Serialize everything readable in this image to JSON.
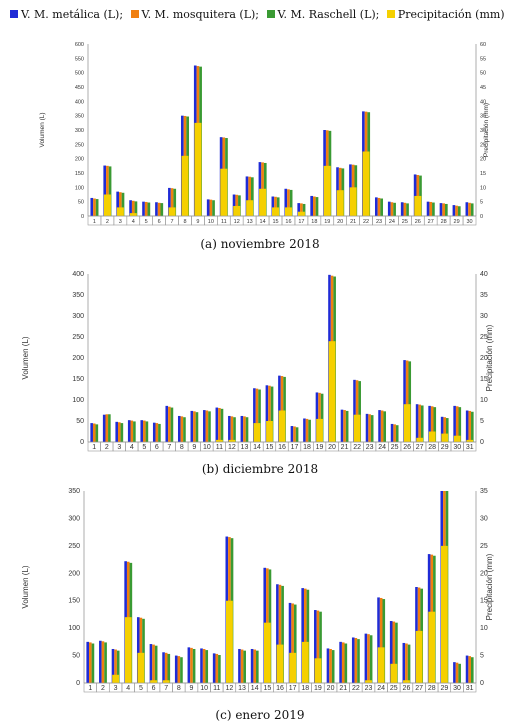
{
  "legend": {
    "items": [
      {
        "label": "V. M. metálica (L);",
        "color": "#1f2bd6"
      },
      {
        "label": "V. M. mosquitera (L);",
        "color": "#f07f10"
      },
      {
        "label": "V. M. Raschell (L);",
        "color": "#3a9a33"
      },
      {
        "label": "Precipitación (mm)",
        "color": "#f5d000"
      }
    ]
  },
  "chart_data": [
    {
      "type": "bar",
      "caption": "(a) noviembre 2018",
      "ylabel": "Volumen (L)",
      "y2label": "Precipitación (mm)",
      "ylim": [
        0,
        600
      ],
      "y_ticks": [
        0,
        50,
        100,
        150,
        200,
        250,
        300,
        350,
        400,
        450,
        500,
        550,
        600
      ],
      "y2lim": [
        0,
        60
      ],
      "y2_ticks": [
        0,
        5,
        10,
        15,
        20,
        25,
        30,
        35,
        40,
        45,
        50,
        55,
        60
      ],
      "categories": [
        "1",
        "2",
        "3",
        "4",
        "5",
        "6",
        "7",
        "8",
        "9",
        "10",
        "11",
        "12",
        "13",
        "14",
        "15",
        "16",
        "17",
        "18",
        "19",
        "20",
        "21",
        "22",
        "23",
        "24",
        "25",
        "26",
        "27",
        "28",
        "29",
        "30"
      ],
      "series": [
        {
          "name": "V. M. metálica (L)",
          "axis": "left",
          "values": [
            63,
            176,
            85,
            55,
            50,
            48,
            98,
            350,
            525,
            58,
            275,
            75,
            138,
            188,
            68,
            95,
            45,
            70,
            300,
            170,
            180,
            365,
            65,
            50,
            48,
            145,
            50,
            45,
            38,
            48
          ]
        },
        {
          "name": "V. M. mosquitera (L)",
          "axis": "left",
          "values": [
            61,
            175,
            83,
            53,
            49,
            46,
            97,
            349,
            523,
            57,
            274,
            74,
            137,
            187,
            67,
            93,
            44,
            68,
            299,
            168,
            179,
            364,
            63,
            48,
            46,
            143,
            49,
            44,
            36,
            46
          ]
        },
        {
          "name": "V. M. Raschell (L)",
          "axis": "left",
          "values": [
            59,
            173,
            81,
            51,
            47,
            45,
            95,
            347,
            521,
            55,
            272,
            72,
            135,
            185,
            65,
            91,
            42,
            66,
            297,
            166,
            177,
            362,
            61,
            46,
            44,
            141,
            47,
            42,
            34,
            44
          ]
        },
        {
          "name": "Precipitación (mm)",
          "axis": "right",
          "values": [
            0,
            7.5,
            3,
            1,
            0,
            0,
            3,
            21,
            32.5,
            0,
            16.5,
            3.5,
            5.5,
            9.5,
            3,
            3,
            1.5,
            0,
            17.5,
            9,
            10,
            22.5,
            0,
            0,
            0,
            7,
            0,
            0,
            0,
            0
          ]
        }
      ]
    },
    {
      "type": "bar",
      "caption": "(b) diciembre 2018",
      "ylabel": "Volumen (L)",
      "y2label": "Precipitación (mm)",
      "ylim": [
        0,
        400
      ],
      "y_ticks": [
        0,
        50,
        100,
        150,
        200,
        250,
        300,
        350,
        400
      ],
      "y2lim": [
        0,
        40
      ],
      "y2_ticks": [
        0,
        5,
        10,
        15,
        20,
        25,
        30,
        35,
        40
      ],
      "categories": [
        "1",
        "2",
        "3",
        "4",
        "5",
        "6",
        "7",
        "8",
        "9",
        "10",
        "11",
        "12",
        "13",
        "14",
        "15",
        "16",
        "17",
        "18",
        "19",
        "20",
        "21",
        "22",
        "23",
        "24",
        "25",
        "26",
        "27",
        "28",
        "29",
        "30",
        "31"
      ],
      "series": [
        {
          "name": "V. M. metálica (L)",
          "axis": "left",
          "values": [
            45,
            65,
            48,
            52,
            52,
            46,
            86,
            62,
            74,
            76,
            82,
            62,
            62,
            128,
            135,
            158,
            38,
            56,
            118,
            398,
            77,
            148,
            67,
            76,
            43,
            195,
            90,
            86,
            60,
            86,
            75
          ]
        },
        {
          "name": "V. M. mosquitera (L)",
          "axis": "left",
          "values": [
            44,
            66,
            47,
            51,
            51,
            45,
            84,
            61,
            73,
            75,
            81,
            61,
            61,
            127,
            134,
            157,
            37,
            55,
            117,
            396,
            76,
            147,
            66,
            75,
            42,
            194,
            89,
            85,
            59,
            85,
            74
          ]
        },
        {
          "name": "V. M. Raschell (L)",
          "axis": "left",
          "values": [
            42,
            66,
            45,
            49,
            49,
            43,
            82,
            59,
            71,
            73,
            79,
            59,
            59,
            125,
            132,
            155,
            35,
            53,
            115,
            394,
            74,
            145,
            64,
            73,
            40,
            192,
            87,
            83,
            57,
            83,
            72
          ]
        },
        {
          "name": "Precipitación (mm)",
          "axis": "right",
          "values": [
            0,
            0,
            0,
            0,
            0,
            0,
            0,
            0,
            0,
            0,
            0.5,
            0.5,
            0,
            4.5,
            5,
            7.5,
            0,
            0,
            5.5,
            24,
            0,
            6.5,
            0,
            0,
            0,
            9,
            1,
            2.5,
            2,
            1.5,
            0.5
          ]
        }
      ]
    },
    {
      "type": "bar",
      "caption": "(c) enero 2019",
      "ylabel": "Volumen (L)",
      "y2label": "Precipitación (mm)",
      "ylim": [
        0,
        350
      ],
      "y_ticks": [
        0,
        50,
        100,
        150,
        200,
        250,
        300,
        350
      ],
      "y2lim": [
        0,
        35
      ],
      "y2_ticks": [
        0,
        5,
        10,
        15,
        20,
        25,
        30,
        35
      ],
      "categories": [
        "1",
        "2",
        "3",
        "4",
        "5",
        "6",
        "7",
        "8",
        "9",
        "10",
        "11",
        "12",
        "13",
        "14",
        "15",
        "16",
        "17",
        "18",
        "19",
        "20",
        "21",
        "22",
        "23",
        "24",
        "25",
        "26",
        "27",
        "28",
        "29",
        "30",
        "31"
      ],
      "series": [
        {
          "name": "V. M. metálica (L)",
          "axis": "left",
          "values": [
            75,
            77,
            62,
            222,
            120,
            71,
            56,
            50,
            65,
            63,
            54,
            267,
            62,
            62,
            210,
            180,
            146,
            173,
            133,
            63,
            75,
            83,
            90,
            156,
            113,
            73,
            175,
            235,
            350,
            38,
            50
          ]
        },
        {
          "name": "V. M. mosquitera (L)",
          "axis": "left",
          "values": [
            74,
            76,
            61,
            221,
            119,
            70,
            55,
            49,
            64,
            62,
            53,
            266,
            61,
            61,
            209,
            179,
            145,
            172,
            132,
            62,
            74,
            82,
            89,
            155,
            112,
            72,
            174,
            234,
            350,
            37,
            49
          ]
        },
        {
          "name": "V. M. Raschell (L)",
          "axis": "left",
          "values": [
            72,
            74,
            59,
            219,
            117,
            68,
            53,
            47,
            62,
            60,
            51,
            264,
            59,
            59,
            207,
            177,
            143,
            170,
            130,
            60,
            72,
            80,
            87,
            153,
            110,
            70,
            172,
            232,
            350,
            35,
            47
          ]
        },
        {
          "name": "Precipitación (mm)",
          "axis": "right",
          "values": [
            0,
            0,
            1.5,
            12,
            5.5,
            0.5,
            0.5,
            0,
            0,
            0,
            0,
            15,
            0,
            0,
            11,
            7,
            5.5,
            7.5,
            4.5,
            0,
            0,
            0,
            0.5,
            6.5,
            3.5,
            0.5,
            9.5,
            13,
            25,
            0,
            0
          ]
        }
      ]
    }
  ]
}
